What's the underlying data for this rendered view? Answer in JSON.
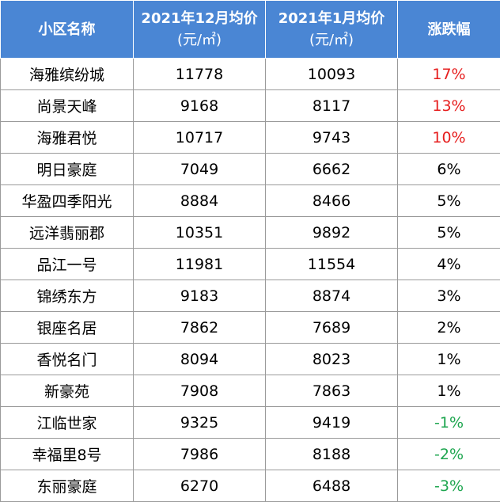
{
  "colors": {
    "header_bg": "#4a86d4",
    "up": "#e61e1e",
    "down": "#1fa650",
    "flat": "#000000"
  },
  "header": {
    "col1": "小区名称",
    "col2_title": "2021年12月均价",
    "col2_unit": "(元/㎡)",
    "col3_title": "2021年1月均价",
    "col3_unit": "(元/㎡)",
    "col4": "涨跌幅"
  },
  "chart_data": {
    "type": "table",
    "columns": [
      "小区名称",
      "2021年12月均价(元/㎡)",
      "2021年1月均价(元/㎡)",
      "涨跌幅"
    ],
    "rows": [
      {
        "name": "海雅缤纷城",
        "dec": "11778",
        "jan": "10093",
        "change": "17%",
        "trend": "up"
      },
      {
        "name": "尚景天峰",
        "dec": "9168",
        "jan": "8117",
        "change": "13%",
        "trend": "up"
      },
      {
        "name": "海雅君悦",
        "dec": "10717",
        "jan": "9743",
        "change": "10%",
        "trend": "up"
      },
      {
        "name": "明日豪庭",
        "dec": "7049",
        "jan": "6662",
        "change": "6%",
        "trend": "flat"
      },
      {
        "name": "华盈四季阳光",
        "dec": "8884",
        "jan": "8466",
        "change": "5%",
        "trend": "flat"
      },
      {
        "name": "远洋翡丽郡",
        "dec": "10351",
        "jan": "9892",
        "change": "5%",
        "trend": "flat"
      },
      {
        "name": "品江一号",
        "dec": "11981",
        "jan": "11554",
        "change": "4%",
        "trend": "flat"
      },
      {
        "name": "锦绣东方",
        "dec": "9183",
        "jan": "8874",
        "change": "3%",
        "trend": "flat"
      },
      {
        "name": "银座名居",
        "dec": "7862",
        "jan": "7689",
        "change": "2%",
        "trend": "flat"
      },
      {
        "name": "香悦名门",
        "dec": "8094",
        "jan": "8023",
        "change": "1%",
        "trend": "flat"
      },
      {
        "name": "新豪苑",
        "dec": "7908",
        "jan": "7863",
        "change": "1%",
        "trend": "flat"
      },
      {
        "name": "江临世家",
        "dec": "9325",
        "jan": "9419",
        "change": "-1%",
        "trend": "down"
      },
      {
        "name": "幸福里8号",
        "dec": "7986",
        "jan": "8188",
        "change": "-2%",
        "trend": "down"
      },
      {
        "name": "东丽豪庭",
        "dec": "6270",
        "jan": "6488",
        "change": "-3%",
        "trend": "down"
      }
    ]
  }
}
